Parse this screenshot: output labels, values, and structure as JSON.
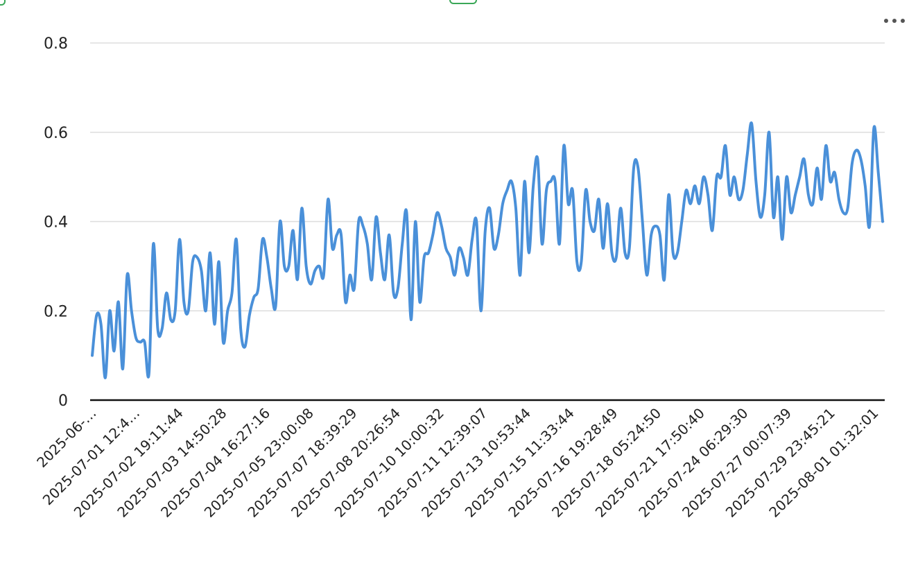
{
  "chart_data": {
    "type": "line",
    "title": "",
    "xlabel": "",
    "ylabel": "",
    "ylim": [
      0,
      0.8
    ],
    "yticks": [
      "0",
      "0.2",
      "0.4",
      "0.6",
      "0.8"
    ],
    "grid": true,
    "legend": "none",
    "line_color": "#4a90d9",
    "x_tick_labels": [
      "2025-06-…",
      "2025-07-01 12:4…",
      "2025-07-02 19:11:44",
      "2025-07-03 14:50:28",
      "2025-07-04 16:27:16",
      "2025-07-05 23:00:08",
      "2025-07-07 18:39:29",
      "2025-07-08 20:26:54",
      "2025-07-10 10:00:32",
      "2025-07-11 12:39:07",
      "2025-07-13 10:53:44",
      "2025-07-15 11:33:44",
      "2025-07-16 19:28:49",
      "2025-07-18 05:24:50",
      "2025-07-21 17:50:40",
      "2025-07-24 06:29:30",
      "2025-07-27 00:07:39",
      "2025-07-29 23:45:21",
      "2025-08-01 01:32:01"
    ],
    "series": [
      {
        "values": [
          0.1,
          0.19,
          0.17,
          0.05,
          0.2,
          0.11,
          0.22,
          0.07,
          0.28,
          0.2,
          0.14,
          0.13,
          0.13,
          0.06,
          0.35,
          0.16,
          0.16,
          0.24,
          0.18,
          0.2,
          0.36,
          0.22,
          0.2,
          0.31,
          0.32,
          0.29,
          0.2,
          0.33,
          0.17,
          0.31,
          0.13,
          0.2,
          0.24,
          0.36,
          0.16,
          0.12,
          0.19,
          0.23,
          0.25,
          0.36,
          0.32,
          0.25,
          0.21,
          0.4,
          0.3,
          0.3,
          0.38,
          0.27,
          0.43,
          0.3,
          0.26,
          0.29,
          0.3,
          0.28,
          0.45,
          0.34,
          0.37,
          0.37,
          0.22,
          0.28,
          0.25,
          0.4,
          0.39,
          0.35,
          0.27,
          0.41,
          0.33,
          0.27,
          0.37,
          0.24,
          0.25,
          0.35,
          0.42,
          0.18,
          0.4,
          0.22,
          0.32,
          0.33,
          0.37,
          0.42,
          0.39,
          0.34,
          0.32,
          0.28,
          0.34,
          0.32,
          0.28,
          0.36,
          0.4,
          0.2,
          0.38,
          0.43,
          0.34,
          0.37,
          0.44,
          0.47,
          0.49,
          0.43,
          0.28,
          0.49,
          0.33,
          0.48,
          0.54,
          0.35,
          0.47,
          0.49,
          0.49,
          0.35,
          0.57,
          0.44,
          0.47,
          0.31,
          0.31,
          0.47,
          0.4,
          0.38,
          0.45,
          0.34,
          0.44,
          0.33,
          0.32,
          0.43,
          0.33,
          0.34,
          0.52,
          0.52,
          0.4,
          0.28,
          0.37,
          0.39,
          0.37,
          0.27,
          0.46,
          0.33,
          0.33,
          0.4,
          0.47,
          0.44,
          0.48,
          0.44,
          0.5,
          0.46,
          0.38,
          0.5,
          0.5,
          0.57,
          0.46,
          0.5,
          0.45,
          0.47,
          0.55,
          0.62,
          0.49,
          0.41,
          0.46,
          0.6,
          0.41,
          0.5,
          0.36,
          0.5,
          0.42,
          0.46,
          0.5,
          0.54,
          0.46,
          0.44,
          0.52,
          0.45,
          0.57,
          0.49,
          0.51,
          0.45,
          0.42,
          0.43,
          0.53,
          0.56,
          0.54,
          0.48,
          0.39,
          0.61,
          0.51,
          0.4
        ]
      }
    ]
  },
  "menu": {
    "icon": "more-horizontal-icon",
    "color": "#555555"
  }
}
